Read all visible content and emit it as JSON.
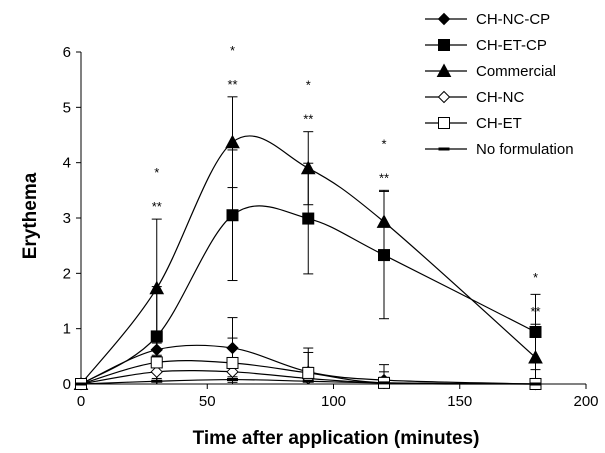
{
  "chart_data": {
    "type": "line",
    "title": "",
    "xlabel": "Time after application (minutes)",
    "ylabel": "Erythema",
    "xlim": [
      0,
      200
    ],
    "ylim": [
      0,
      6
    ],
    "x_ticks": [
      0,
      50,
      100,
      150,
      200
    ],
    "y_ticks": [
      0,
      1,
      2,
      3,
      4,
      5,
      6
    ],
    "grid": false,
    "smoothed": true,
    "legend_position": "top-right",
    "x": [
      0,
      30,
      60,
      90,
      120,
      180
    ],
    "series": [
      {
        "name": "CH-NC-CP",
        "marker": "filled-diamond",
        "values": [
          0,
          0.62,
          0.65,
          0.22,
          0.07,
          0
        ],
        "error": [
          0,
          0.12,
          0.55,
          0.35,
          0.28,
          0
        ]
      },
      {
        "name": "CH-ET-CP",
        "marker": "filled-square",
        "values": [
          0,
          0.86,
          3.05,
          2.99,
          2.33,
          0.94
        ],
        "error": [
          0,
          0.9,
          1.18,
          1.0,
          1.15,
          0.68
        ]
      },
      {
        "name": "Commercial",
        "marker": "filled-triangle",
        "values": [
          0,
          1.73,
          4.37,
          3.9,
          2.93,
          0.48
        ],
        "error": [
          0,
          1.25,
          0.82,
          0.66,
          0.57,
          0.6
        ]
      },
      {
        "name": "CH-NC",
        "marker": "open-diamond",
        "values": [
          0,
          0.22,
          0.22,
          0.1,
          0.02,
          0
        ],
        "error": [
          0,
          0.3,
          0.25,
          0.2,
          0.1,
          0
        ]
      },
      {
        "name": "CH-ET",
        "marker": "open-square",
        "values": [
          0,
          0.39,
          0.38,
          0.2,
          0.02,
          0
        ],
        "error": [
          0,
          0.5,
          0.45,
          0.45,
          0.2,
          0.1
        ]
      },
      {
        "name": "No formulation",
        "marker": "dash",
        "values": [
          0,
          0.05,
          0.08,
          0.05,
          0.02,
          0
        ],
        "error": [
          0,
          0.05,
          0.05,
          0.05,
          0.05,
          0
        ]
      }
    ],
    "annotations": [
      {
        "x": 30,
        "single": "*",
        "double": "**"
      },
      {
        "x": 60,
        "single": "*",
        "double": "**"
      },
      {
        "x": 90,
        "single": "*",
        "double": "**"
      },
      {
        "x": 120,
        "single": "*",
        "double": "**"
      },
      {
        "x": 180,
        "single": "*",
        "double": "**"
      }
    ]
  }
}
